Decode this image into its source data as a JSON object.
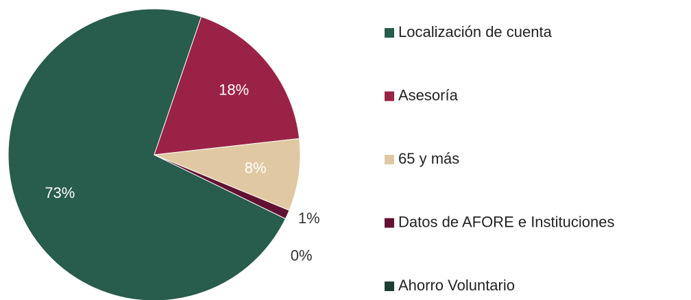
{
  "chart_data": {
    "type": "pie",
    "categories": [
      "Localización de cuenta",
      "Asesoría",
      "65 y más",
      "Datos de AFORE e Instituciones",
      "Ahorro Voluntario"
    ],
    "values": [
      73,
      18,
      8,
      1,
      0
    ],
    "value_labels": [
      "73%",
      "18%",
      "8%",
      "1%",
      "0%"
    ],
    "colors": [
      "#285c4d",
      "#9b2247",
      "#e0c9a2",
      "#611232",
      "#1e3d33"
    ],
    "legend": "right"
  }
}
